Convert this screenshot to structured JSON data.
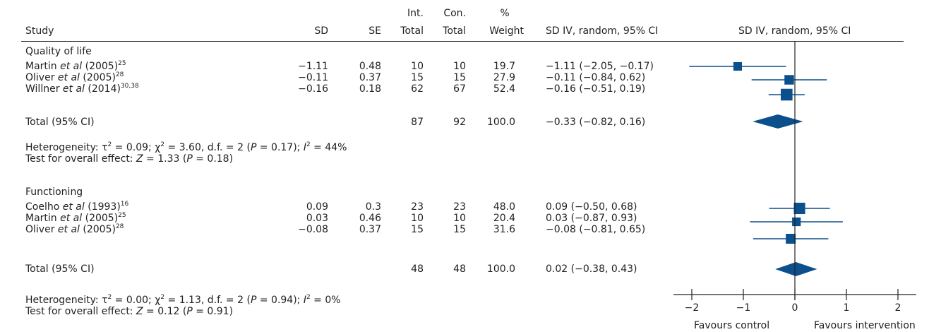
{
  "headers": {
    "study": "Study",
    "sd": "SD",
    "se": "SE",
    "int_total": [
      "Int.",
      "Total"
    ],
    "con_total": [
      "Con.",
      "Total"
    ],
    "weight": [
      "%",
      "Weight"
    ],
    "ci": "SD IV, random, 95% CI",
    "plot": "SD IV, random, 95% CI"
  },
  "groups": [
    {
      "title": "Quality of life",
      "studies": [
        {
          "author": "Martin",
          "etal": "et al",
          "year": "(2005)",
          "ref": "25",
          "sd": "−1.11",
          "se": "0.48",
          "int": "10",
          "con": "10",
          "weight": "19.7",
          "ci_text": "−1.11 (−2.05, −0.17)"
        },
        {
          "author": "Oliver",
          "etal": "et al",
          "year": "(2005)",
          "ref": "28",
          "sd": "−0.11",
          "se": "0.37",
          "int": "15",
          "con": "15",
          "weight": "27.9",
          "ci_text": "−0.11 (−0.84, 0.62)"
        },
        {
          "author": "Willner",
          "etal": "et al",
          "year": "(2014)",
          "ref": "30,38",
          "sd": "−0.16",
          "se": "0.18",
          "int": "62",
          "con": "67",
          "weight": "52.4",
          "ci_text": "−0.16 (−0.51, 0.19)"
        }
      ],
      "total": {
        "label": "Total (95% CI)",
        "int": "87",
        "con": "92",
        "weight": "100.0",
        "ci_text": "−0.33 (−0.82, 0.16)"
      },
      "heterogeneity": {
        "tau2": "0.09",
        "chi2": "3.60",
        "df": "2",
        "p": "0.17",
        "i2": "44%"
      },
      "overall": {
        "z": "1.33",
        "p": "0.18"
      }
    },
    {
      "title": "Functioning",
      "studies": [
        {
          "author": "Coelho",
          "etal": "et al",
          "year": "(1993)",
          "ref": "16",
          "sd": "0.09",
          "se": "0.3",
          "int": "23",
          "con": "23",
          "weight": "48.0",
          "ci_text": "0.09 (−0.50, 0.68)"
        },
        {
          "author": "Martin",
          "etal": "et al",
          "year": "(2005)",
          "ref": "25",
          "sd": "0.03",
          "se": "0.46",
          "int": "10",
          "con": "10",
          "weight": "20.4",
          "ci_text": "0.03 (−0.87, 0.93)"
        },
        {
          "author": "Oliver",
          "etal": "et al",
          "year": "(2005)",
          "ref": "28",
          "sd": "−0.08",
          "se": "0.37",
          "int": "15",
          "con": "15",
          "weight": "31.6",
          "ci_text": "−0.08 (−0.81, 0.65)"
        }
      ],
      "total": {
        "label": "Total (95% CI)",
        "int": "48",
        "con": "48",
        "weight": "100.0",
        "ci_text": "0.02 (−0.38, 0.43)"
      },
      "heterogeneity": {
        "tau2": "0.00",
        "chi2": "1.13",
        "df": "2",
        "p": "0.94",
        "i2": "0%"
      },
      "overall": {
        "z": "0.12",
        "p": "0.91"
      }
    }
  ],
  "text": {
    "het_prefix": "Heterogeneity: ",
    "overall_prefix": "Test for overall effect: "
  },
  "colors": {
    "marker": "#0b4f8c",
    "line": "#222222",
    "text": "#222222"
  },
  "chart_data": {
    "type": "forest",
    "title": "SD IV, random, 95% CI",
    "xlim": [
      -2,
      2
    ],
    "x_ticks": [
      "−2",
      "−1",
      "0",
      "1",
      "2"
    ],
    "tick_values": [
      -2,
      -1,
      0,
      1,
      2
    ],
    "xlabel_left": "Favours control",
    "xlabel_right": "Favours intervention",
    "series": [
      {
        "name": "Quality of life",
        "studies": [
          {
            "label": "Martin et al (2005)",
            "est": -1.11,
            "lo": -2.05,
            "hi": -0.17,
            "weight": 19.7
          },
          {
            "label": "Oliver et al (2005)",
            "est": -0.11,
            "lo": -0.84,
            "hi": 0.62,
            "weight": 27.9
          },
          {
            "label": "Willner et al (2014)",
            "est": -0.16,
            "lo": -0.51,
            "hi": 0.19,
            "weight": 52.4
          }
        ],
        "pooled": {
          "est": -0.33,
          "lo": -0.82,
          "hi": 0.16
        }
      },
      {
        "name": "Functioning",
        "studies": [
          {
            "label": "Coelho et al (1993)",
            "est": 0.09,
            "lo": -0.5,
            "hi": 0.68,
            "weight": 48.0
          },
          {
            "label": "Martin et al (2005)",
            "est": 0.03,
            "lo": -0.87,
            "hi": 0.93,
            "weight": 20.4
          },
          {
            "label": "Oliver et al (2005)",
            "est": -0.08,
            "lo": -0.81,
            "hi": 0.65,
            "weight": 31.6
          }
        ],
        "pooled": {
          "est": 0.02,
          "lo": -0.38,
          "hi": 0.43
        }
      }
    ]
  }
}
